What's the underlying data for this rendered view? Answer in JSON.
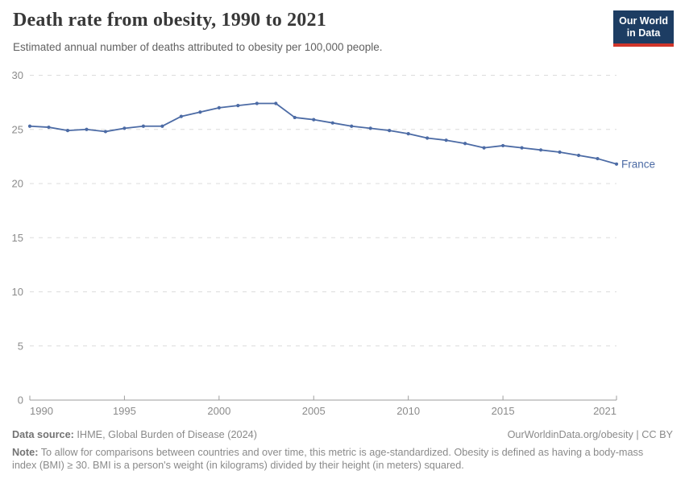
{
  "header": {
    "title": "Death rate from obesity, 1990 to 2021",
    "subtitle": "Estimated annual number of deaths attributed to obesity per 100,000 people.",
    "logo": {
      "line1": "Our World",
      "line2": "in Data"
    }
  },
  "colors": {
    "series": "#4c6ba5",
    "logo_bg": "#1d3d63",
    "logo_stripe": "#d0352a",
    "grid": "#dcdcdc",
    "axis": "#9e9e9e",
    "tick_label": "#8b8b8b"
  },
  "chart_data": {
    "type": "line",
    "title": "Death rate from obesity, 1990 to 2021",
    "xlabel": "",
    "ylabel": "",
    "xlim": [
      1990,
      2021
    ],
    "ylim": [
      0,
      30
    ],
    "xticks": [
      1990,
      1995,
      2000,
      2005,
      2010,
      2015,
      2021
    ],
    "yticks": [
      0,
      5,
      10,
      15,
      20,
      25,
      30
    ],
    "grid": "horizontal-dashed",
    "legend_position": "end-of-line-label",
    "x": [
      1990,
      1991,
      1992,
      1993,
      1994,
      1995,
      1996,
      1997,
      1998,
      1999,
      2000,
      2001,
      2002,
      2003,
      2004,
      2005,
      2006,
      2007,
      2008,
      2009,
      2010,
      2011,
      2012,
      2013,
      2014,
      2015,
      2016,
      2017,
      2018,
      2019,
      2020,
      2021
    ],
    "series": [
      {
        "name": "France",
        "color": "#4c6ba5",
        "values": [
          25.3,
          25.2,
          24.9,
          25.0,
          24.8,
          25.1,
          25.3,
          25.3,
          26.2,
          26.6,
          27.0,
          27.2,
          27.4,
          27.4,
          26.1,
          25.9,
          25.6,
          25.3,
          25.1,
          24.9,
          24.6,
          24.2,
          24.0,
          23.7,
          23.3,
          23.5,
          23.3,
          23.1,
          22.9,
          22.6,
          22.3,
          21.8
        ]
      }
    ]
  },
  "footer": {
    "source_label": "Data source:",
    "source_text": " IHME, Global Burden of Disease (2024)",
    "link_text": "OurWorldinData.org/obesity | CC BY",
    "note_label": "Note:",
    "note_text": " To allow for comparisons between countries and over time, this metric is age-standardized. Obesity is defined as having a body-mass index (BMI) ≥ 30. BMI is a person's weight (in kilograms) divided by their height (in meters) squared."
  }
}
